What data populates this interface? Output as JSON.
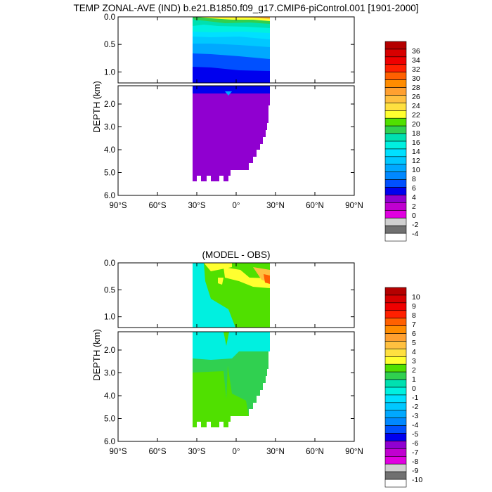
{
  "chart_data": [
    {
      "type": "heatmap",
      "title": "TEMP ZONAL-AVE (IND) b.e21.B1850.f09_g17.CMIP6-piControl.001 [1901-2000]",
      "ylabel": "DEPTH (km)",
      "x_ticks": [
        "90°S",
        "60°S",
        "30°S",
        "0°",
        "30°N",
        "60°N",
        "90°N"
      ],
      "x_tick_values": [
        -90,
        -60,
        -30,
        0,
        30,
        60,
        90
      ],
      "xlim": [
        -90,
        90
      ],
      "upper_panel": {
        "ylim": [
          0,
          1.2
        ],
        "y_ticks": [
          "0.0",
          "0.5",
          "1.0"
        ],
        "y_tick_values": [
          0,
          0.5,
          1.0
        ]
      },
      "lower_panel": {
        "ylim": [
          1.2,
          6.0
        ],
        "y_ticks": [
          "2.0",
          "3.0",
          "4.0",
          "5.0",
          "6.0"
        ],
        "y_tick_values": [
          2,
          3,
          4,
          5,
          6
        ]
      },
      "colorbar_labels": [
        "36",
        "34",
        "32",
        "30",
        "28",
        "26",
        "24",
        "22",
        "20",
        "18",
        "16",
        "14",
        "12",
        "10",
        "8",
        "6",
        "4",
        "2",
        "0",
        "-2",
        "-4"
      ],
      "colorbar_colors": [
        "#b40000",
        "#d70000",
        "#ef0000",
        "#ff2000",
        "#ff6000",
        "#ff8c00",
        "#ffa030",
        "#ffc040",
        "#ffe040",
        "#ffff30",
        "#50e000",
        "#30d050",
        "#00e0b0",
        "#00f0e0",
        "#00e0ff",
        "#00c8ff",
        "#00a8ff",
        "#0088ff",
        "#0050ff",
        "#0000ee",
        "#9000d0",
        "#c000d0",
        "#e000e0",
        "#d0d0d0",
        "#707070",
        "#ffffff"
      ]
    },
    {
      "type": "heatmap",
      "title": "(MODEL - OBS)",
      "ylabel": "DEPTH (km)",
      "x_ticks": [
        "90°S",
        "60°S",
        "30°S",
        "0°",
        "30°N",
        "60°N",
        "90°N"
      ],
      "x_tick_values": [
        -90,
        -60,
        -30,
        0,
        30,
        60,
        90
      ],
      "xlim": [
        -90,
        90
      ],
      "upper_panel": {
        "ylim": [
          0,
          1.2
        ],
        "y_ticks": [
          "0.0",
          "0.5",
          "1.0"
        ],
        "y_tick_values": [
          0,
          0.5,
          1.0
        ]
      },
      "lower_panel": {
        "ylim": [
          1.2,
          6.0
        ],
        "y_ticks": [
          "2.0",
          "3.0",
          "4.0",
          "5.0",
          "6.0"
        ],
        "y_tick_values": [
          2,
          3,
          4,
          5,
          6
        ]
      },
      "colorbar_labels": [
        "10",
        "9",
        "8",
        "7",
        "6",
        "5",
        "4",
        "3",
        "2",
        "1",
        "0",
        "-1",
        "-2",
        "-3",
        "-4",
        "-5",
        "-6",
        "-7",
        "-8",
        "-9",
        "-10"
      ],
      "colorbar_colors": [
        "#b40000",
        "#d70000",
        "#ef0000",
        "#ff2000",
        "#ff6000",
        "#ff8c00",
        "#ffa030",
        "#ffc040",
        "#ffe040",
        "#ffff30",
        "#50e000",
        "#30d050",
        "#00e0b0",
        "#00f0e0",
        "#00e0ff",
        "#00c8ff",
        "#00a8ff",
        "#0088ff",
        "#0050ff",
        "#0000ee",
        "#9000d0",
        "#c000d0",
        "#e000e0",
        "#d0d0d0",
        "#707070",
        "#ffffff"
      ]
    }
  ]
}
